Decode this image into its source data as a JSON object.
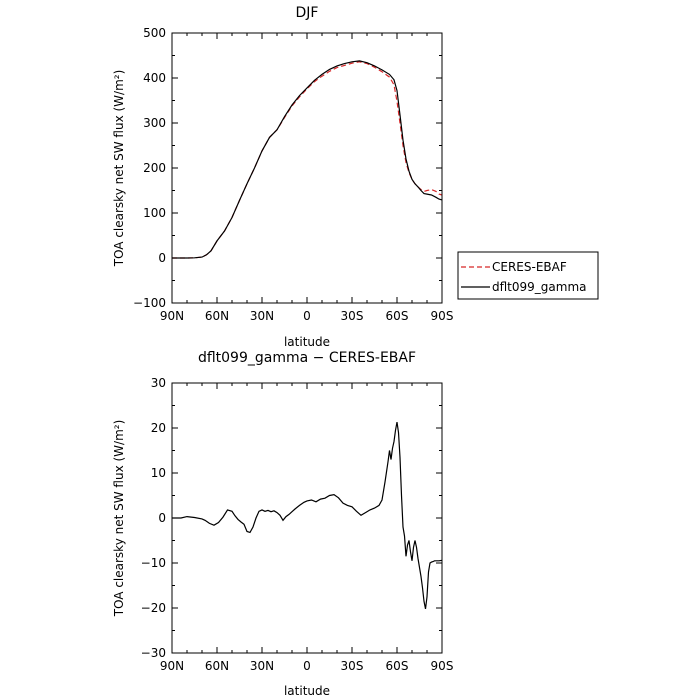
{
  "chart_data": [
    {
      "type": "line",
      "title": "DJF",
      "xlabel": "latitude",
      "ylabel": "TOA clearsky net SW flux (W/m²)",
      "xlim": [
        -90,
        90
      ],
      "ylim": [
        -100,
        500
      ],
      "xticks": [
        -90,
        -60,
        -30,
        0,
        30,
        60,
        90
      ],
      "xtick_labels": [
        "90N",
        "60N",
        "30N",
        "0",
        "30S",
        "60S",
        "90S"
      ],
      "yticks": [
        -100,
        0,
        100,
        200,
        300,
        400,
        500
      ],
      "ytick_labels": [
        "−100",
        "0",
        "100",
        "200",
        "300",
        "400",
        "500"
      ],
      "legend": "outside-right",
      "series": [
        {
          "name": "CERES-EBAF",
          "color": "#d62728",
          "dash": "dashed",
          "points": [
            [
              -90,
              0
            ],
            [
              -80,
              0
            ],
            [
              -75,
              0.5
            ],
            [
              -70,
              2
            ],
            [
              -67,
              7
            ],
            [
              -64,
              16
            ],
            [
              -60,
              38
            ],
            [
              -55,
              60
            ],
            [
              -50,
              90
            ],
            [
              -45,
              128
            ],
            [
              -40,
              165
            ],
            [
              -35,
              200
            ],
            [
              -30,
              238
            ],
            [
              -25,
              268
            ],
            [
              -20,
              285
            ],
            [
              -15,
              312
            ],
            [
              -10,
              338
            ],
            [
              -5,
              358
            ],
            [
              0,
              376
            ],
            [
              5,
              392
            ],
            [
              10,
              404
            ],
            [
              15,
              415
            ],
            [
              20,
              423
            ],
            [
              25,
              428
            ],
            [
              30,
              433
            ],
            [
              35,
              436
            ],
            [
              40,
              432
            ],
            [
              45,
              424
            ],
            [
              50,
              414
            ],
            [
              55,
              402
            ],
            [
              58,
              385
            ],
            [
              60,
              348
            ],
            [
              62,
              300
            ],
            [
              64,
              250
            ],
            [
              66,
              212
            ],
            [
              68,
              190
            ],
            [
              70,
              175
            ],
            [
              72,
              165
            ],
            [
              74,
              158
            ],
            [
              76,
              152
            ],
            [
              78,
              148
            ],
            [
              80,
              150
            ],
            [
              83,
              152
            ],
            [
              86,
              148
            ],
            [
              88,
              142
            ],
            [
              90,
              140
            ]
          ]
        },
        {
          "name": "dflt099_gamma",
          "color": "#000000",
          "dash": "solid",
          "points": [
            [
              -90,
              0
            ],
            [
              -80,
              0
            ],
            [
              -75,
              0.5
            ],
            [
              -70,
              2
            ],
            [
              -67,
              7
            ],
            [
              -64,
              16
            ],
            [
              -60,
              38
            ],
            [
              -55,
              60
            ],
            [
              -50,
              90
            ],
            [
              -45,
              128
            ],
            [
              -40,
              165
            ],
            [
              -35,
              200
            ],
            [
              -30,
              238
            ],
            [
              -25,
              268
            ],
            [
              -20,
              285
            ],
            [
              -15,
              314
            ],
            [
              -10,
              340
            ],
            [
              -5,
              361
            ],
            [
              0,
              378
            ],
            [
              5,
              395
            ],
            [
              10,
              408
            ],
            [
              15,
              419
            ],
            [
              20,
              427
            ],
            [
              25,
              432
            ],
            [
              30,
              436
            ],
            [
              35,
              438
            ],
            [
              40,
              434
            ],
            [
              45,
              427
            ],
            [
              50,
              418
            ],
            [
              55,
              408
            ],
            [
              58,
              396
            ],
            [
              60,
              372
            ],
            [
              62,
              318
            ],
            [
              64,
              262
            ],
            [
              66,
              220
            ],
            [
              68,
              193
            ],
            [
              70,
              175
            ],
            [
              72,
              165
            ],
            [
              74,
              158
            ],
            [
              76,
              150
            ],
            [
              78,
              143
            ],
            [
              80,
              142
            ],
            [
              83,
              140
            ],
            [
              86,
              135
            ],
            [
              88,
              131
            ],
            [
              90,
              129
            ]
          ]
        }
      ]
    },
    {
      "type": "line",
      "title": "dflt099_gamma − CERES-EBAF",
      "xlabel": "latitude",
      "ylabel": "TOA clearsky net SW flux (W/m²)",
      "xlim": [
        -90,
        90
      ],
      "ylim": [
        -30,
        30
      ],
      "xticks": [
        -90,
        -60,
        -30,
        0,
        30,
        60,
        90
      ],
      "xtick_labels": [
        "90N",
        "60N",
        "30N",
        "0",
        "30S",
        "60S",
        "90S"
      ],
      "yticks": [
        -30,
        -20,
        -10,
        0,
        10,
        20,
        30
      ],
      "ytick_labels": [
        "−30",
        "−20",
        "−10",
        "0",
        "10",
        "20",
        "30"
      ],
      "series": [
        {
          "color": "#000000",
          "dash": "solid",
          "points": [
            [
              -90,
              0
            ],
            [
              -84,
              0
            ],
            [
              -80,
              0.3
            ],
            [
              -75,
              0.1
            ],
            [
              -70,
              -0.2
            ],
            [
              -68,
              -0.5
            ],
            [
              -65,
              -1.2
            ],
            [
              -62,
              -1.6
            ],
            [
              -59,
              -1.0
            ],
            [
              -56,
              0.2
            ],
            [
              -53,
              1.8
            ],
            [
              -50,
              1.5
            ],
            [
              -48,
              0.5
            ],
            [
              -46,
              -0.3
            ],
            [
              -44,
              -0.9
            ],
            [
              -42,
              -1.4
            ],
            [
              -40,
              -3.0
            ],
            [
              -38,
              -3.2
            ],
            [
              -36,
              -2.0
            ],
            [
              -34,
              0
            ],
            [
              -32,
              1.5
            ],
            [
              -30,
              1.8
            ],
            [
              -28,
              1.5
            ],
            [
              -26,
              1.7
            ],
            [
              -24,
              1.4
            ],
            [
              -22,
              1.6
            ],
            [
              -20,
              1.2
            ],
            [
              -18,
              0.6
            ],
            [
              -16,
              -0.5
            ],
            [
              -14,
              0.3
            ],
            [
              -12,
              0.8
            ],
            [
              -10,
              1.4
            ],
            [
              -8,
              2.0
            ],
            [
              -5,
              2.8
            ],
            [
              -2,
              3.5
            ],
            [
              0,
              3.8
            ],
            [
              3,
              4.0
            ],
            [
              6,
              3.6
            ],
            [
              9,
              4.2
            ],
            [
              12,
              4.4
            ],
            [
              15,
              5.0
            ],
            [
              18,
              5.2
            ],
            [
              21,
              4.5
            ],
            [
              24,
              3.3
            ],
            [
              27,
              2.8
            ],
            [
              30,
              2.5
            ],
            [
              33,
              1.5
            ],
            [
              36,
              0.6
            ],
            [
              39,
              1.2
            ],
            [
              42,
              1.8
            ],
            [
              45,
              2.2
            ],
            [
              48,
              2.8
            ],
            [
              50,
              4.0
            ],
            [
              52,
              8.0
            ],
            [
              54,
              12.5
            ],
            [
              55,
              15.0
            ],
            [
              56,
              13.0
            ],
            [
              57,
              15.5
            ],
            [
              58,
              17.0
            ],
            [
              59,
              19.5
            ],
            [
              60,
              21.3
            ],
            [
              61,
              19.0
            ],
            [
              62,
              13.5
            ],
            [
              63,
              5.0
            ],
            [
              64,
              -2.0
            ],
            [
              65,
              -4.0
            ],
            [
              66,
              -8.5
            ],
            [
              67,
              -6.0
            ],
            [
              68,
              -5.0
            ],
            [
              69,
              -7.5
            ],
            [
              70,
              -9.5
            ],
            [
              71,
              -6.5
            ],
            [
              72,
              -5.0
            ],
            [
              73,
              -6.5
            ],
            [
              74,
              -9.0
            ],
            [
              75,
              -11.0
            ],
            [
              76,
              -13.0
            ],
            [
              77,
              -15.5
            ],
            [
              78,
              -18.5
            ],
            [
              79,
              -20.2
            ],
            [
              80,
              -17.5
            ],
            [
              81,
              -12.0
            ],
            [
              82,
              -10.0
            ],
            [
              83,
              -9.8
            ],
            [
              84,
              -9.7
            ],
            [
              85,
              -9.5
            ],
            [
              88,
              -9.5
            ],
            [
              90,
              -9.4
            ]
          ]
        }
      ]
    }
  ]
}
